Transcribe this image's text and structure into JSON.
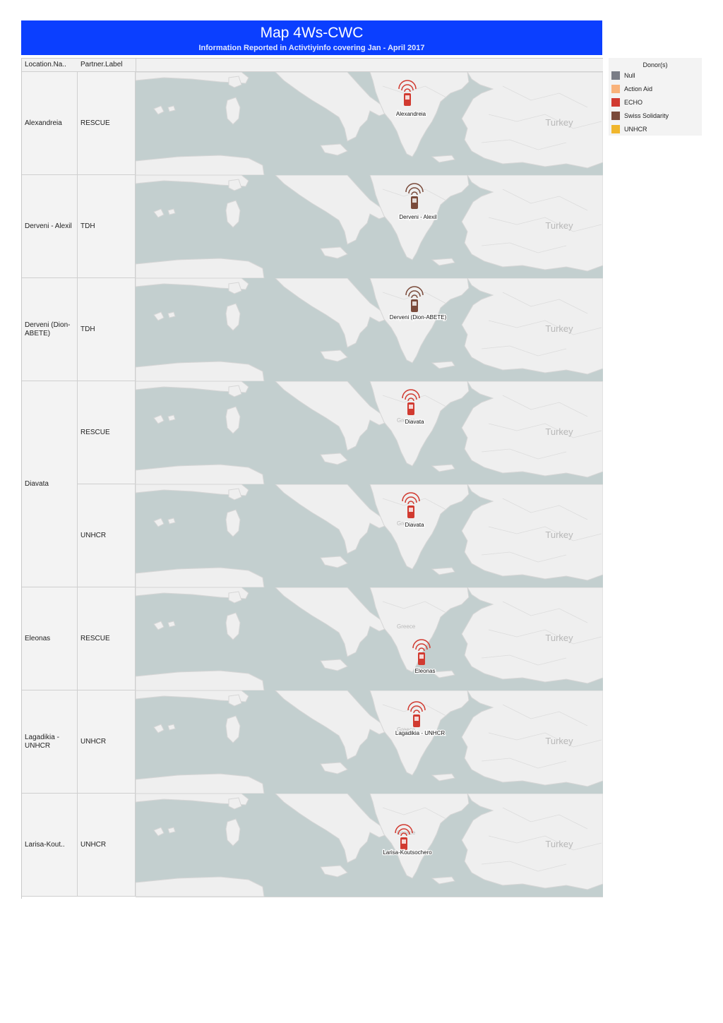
{
  "header": {
    "title": "Map 4Ws-CWC",
    "subtitle": "Information Reported in Activtiyinfo covering Jan - April 2017"
  },
  "columns": {
    "location": "Location.Na..",
    "partner": "Partner.Label"
  },
  "legend": {
    "title": "Donor(s)",
    "items": [
      {
        "label": "Null",
        "color": "#7a7d86"
      },
      {
        "label": "Action Aid",
        "color": "#f9b27a"
      },
      {
        "label": "ECHO",
        "color": "#d13a30"
      },
      {
        "label": "Swiss Solidarity",
        "color": "#7a4a3a"
      },
      {
        "label": "UNHCR",
        "color": "#f0b62d"
      }
    ]
  },
  "locations": [
    {
      "label": "Alexandreia",
      "rows": 1
    },
    {
      "label": "Derveni - Alexil",
      "rows": 1
    },
    {
      "label": "Derveni (Dion-ABETE)",
      "rows": 1
    },
    {
      "label": "Diavata",
      "rows": 2
    },
    {
      "label": "Eleonas",
      "rows": 1
    },
    {
      "label": "Lagadikia - UNHCR",
      "rows": 1
    },
    {
      "label": "Larisa-Kout..",
      "rows": 1
    }
  ],
  "maps": [
    {
      "partner": "RESCUE",
      "marker_label": "Alexandreia",
      "marker_color": "#d13a30",
      "country_label": "Turkey",
      "greece_label": ""
    },
    {
      "partner": "TDH",
      "marker_label": "Derveni - Alexil",
      "marker_color": "#7a4a3a",
      "country_label": "Turkey",
      "greece_label": ""
    },
    {
      "partner": "TDH",
      "marker_label": "Derveni (Dion-ABETE)",
      "marker_color": "#7a4a3a",
      "country_label": "Turkey",
      "greece_label": ""
    },
    {
      "partner": "RESCUE",
      "marker_label": "Diavata",
      "marker_color": "#d13a30",
      "country_label": "Turkey",
      "greece_label": "Greece"
    },
    {
      "partner": "UNHCR",
      "marker_label": "Diavata",
      "marker_color": "#d13a30",
      "country_label": "Turkey",
      "greece_label": "Greece"
    },
    {
      "partner": "RESCUE",
      "marker_label": "Eleonas",
      "marker_color": "#d13a30",
      "country_label": "Turkey",
      "greece_label": "Greece"
    },
    {
      "partner": "UNHCR",
      "marker_label": "Lagadikia - UNHCR",
      "marker_color": "#d13a30",
      "country_label": "Turkey",
      "greece_label": "Greece"
    },
    {
      "partner": "UNHCR",
      "marker_label": "Larisa-Koutsochero",
      "marker_color": "#d13a30",
      "country_label": "Turkey",
      "greece_label": "Greece"
    }
  ]
}
